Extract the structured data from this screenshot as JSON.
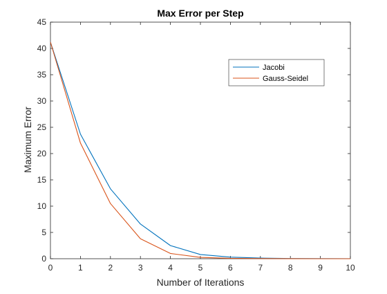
{
  "chart_data": {
    "type": "line",
    "title": "Max Error per Step",
    "xlabel": "Number of Iterations",
    "ylabel": "Maximum Error",
    "xlim": [
      0,
      10
    ],
    "ylim": [
      0,
      45
    ],
    "x_ticks": [
      0,
      1,
      2,
      3,
      4,
      5,
      6,
      7,
      8,
      9,
      10
    ],
    "y_ticks": [
      0,
      5,
      10,
      15,
      20,
      25,
      30,
      35,
      40,
      45
    ],
    "grid": false,
    "legend_position": "top-right",
    "x": [
      0,
      1,
      2,
      3,
      4,
      5,
      6,
      7,
      8,
      9,
      10
    ],
    "series": [
      {
        "name": "Jacobi",
        "color": "#0072BD",
        "values": [
          41.2,
          23.7,
          13.3,
          6.6,
          2.5,
          0.8,
          0.3,
          0.12,
          0.05,
          0.02,
          0.01
        ]
      },
      {
        "name": "Gauss-Seidel",
        "color": "#D95319",
        "values": [
          41.2,
          22.0,
          10.5,
          3.8,
          1.0,
          0.25,
          0.07,
          0.02,
          0.01,
          0.0,
          0.0
        ]
      }
    ]
  }
}
